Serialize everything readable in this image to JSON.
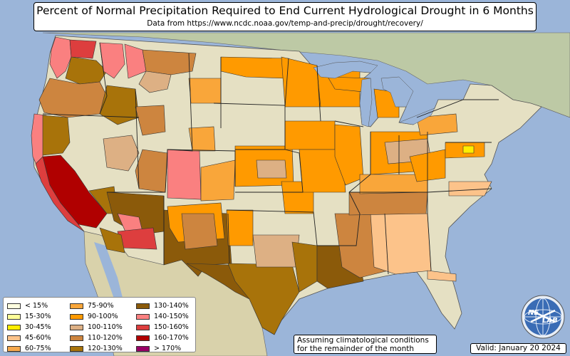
{
  "title": {
    "main": "Percent of Normal Precipitation Required to End Current Hydrological Drought in 6 Months",
    "sub": "Data from https://www.ncdc.noaa.gov/temp-and-precip/drought/recovery/"
  },
  "legend": {
    "items": [
      {
        "label": "< 15%",
        "color": "#ffffe0"
      },
      {
        "label": "15-30%",
        "color": "#ffff99"
      },
      {
        "label": "30-45%",
        "color": "#ffee00"
      },
      {
        "label": "45-60%",
        "color": "#fcc38a"
      },
      {
        "label": "60-75%",
        "color": "#f7a94d"
      },
      {
        "label": "75-90%",
        "color": "#f9a63a"
      },
      {
        "label": "90-100%",
        "color": "#ff9a00"
      },
      {
        "label": "100-110%",
        "color": "#ddb084"
      },
      {
        "label": "110-120%",
        "color": "#cd853f"
      },
      {
        "label": "120-130%",
        "color": "#a8730a"
      },
      {
        "label": "130-140%",
        "color": "#8b5a0a"
      },
      {
        "label": "140-150%",
        "color": "#fa8080"
      },
      {
        "label": "150-160%",
        "color": "#dd3e3e"
      },
      {
        "label": "160-170%",
        "color": "#b00000"
      },
      {
        "label": "> 170%",
        "color": "#990066"
      }
    ]
  },
  "note": {
    "line1": "Assuming climatological conditions",
    "line2": "for the remainder of the month"
  },
  "valid": "Valid: January 20 2024",
  "logo": {
    "line1": "NE",
    "line2": "LAB",
    "icon": "nexlab-globe-logo"
  },
  "colors": {
    "ocean": "#9bb5d9",
    "land": "#e7e2c4",
    "canada": "#bcc9a6",
    "mexico": "#d9d2ab"
  }
}
